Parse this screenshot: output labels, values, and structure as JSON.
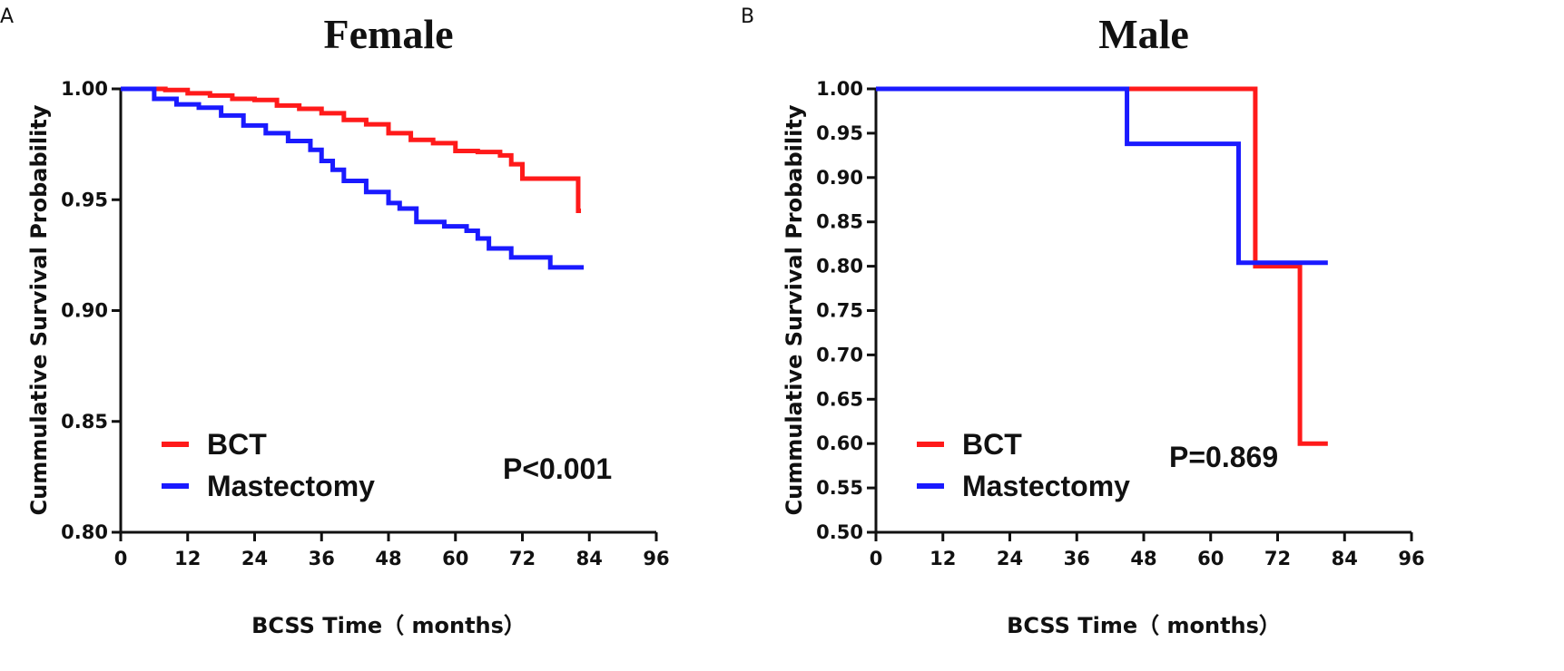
{
  "chart_data": [
    {
      "panel_label": "A",
      "type": "line",
      "subtype": "kaplan-meier step",
      "title": "Female",
      "xlabel": "BCSS Time（ months）",
      "ylabel": "Cummulative Survival Probability",
      "xlim": [
        0,
        96
      ],
      "ylim": [
        0.8,
        1.0
      ],
      "x_ticks": [
        "0",
        "12",
        "24",
        "36",
        "48",
        "60",
        "72",
        "84",
        "96"
      ],
      "y_ticks": [
        "0.80",
        "0.85",
        "0.90",
        "0.95",
        "1.00"
      ],
      "legend_position": "bottom-left",
      "annotation": "P<0.001",
      "series": [
        {
          "name": "BCT",
          "color": "#ff1a1a",
          "points": [
            [
              0,
              1.0
            ],
            [
              8,
              0.9995
            ],
            [
              12,
              0.998
            ],
            [
              16,
              0.997
            ],
            [
              20,
              0.9955
            ],
            [
              24,
              0.995
            ],
            [
              28,
              0.9925
            ],
            [
              32,
              0.991
            ],
            [
              36,
              0.989
            ],
            [
              40,
              0.986
            ],
            [
              44,
              0.984
            ],
            [
              48,
              0.98
            ],
            [
              52,
              0.977
            ],
            [
              56,
              0.9755
            ],
            [
              60,
              0.972
            ],
            [
              64,
              0.9715
            ],
            [
              68,
              0.97
            ],
            [
              70,
              0.966
            ],
            [
              72,
              0.9595
            ],
            [
              82,
              0.9595
            ],
            [
              82,
              0.945
            ],
            [
              82.5,
              0.945
            ]
          ]
        },
        {
          "name": "Mastectomy",
          "color": "#1a1aff",
          "points": [
            [
              0,
              1.0
            ],
            [
              6,
              0.9955
            ],
            [
              10,
              0.993
            ],
            [
              14,
              0.9915
            ],
            [
              18,
              0.988
            ],
            [
              22,
              0.9835
            ],
            [
              26,
              0.98
            ],
            [
              30,
              0.9765
            ],
            [
              34,
              0.9725
            ],
            [
              36,
              0.9675
            ],
            [
              38,
              0.9635
            ],
            [
              40,
              0.9585
            ],
            [
              44,
              0.9535
            ],
            [
              48,
              0.9485
            ],
            [
              50,
              0.946
            ],
            [
              53,
              0.94
            ],
            [
              58,
              0.938
            ],
            [
              62,
              0.936
            ],
            [
              64,
              0.9325
            ],
            [
              66,
              0.928
            ],
            [
              70,
              0.924
            ],
            [
              77,
              0.9195
            ],
            [
              83,
              0.9195
            ]
          ]
        }
      ]
    },
    {
      "panel_label": "B",
      "type": "line",
      "subtype": "kaplan-meier step",
      "title": "Male",
      "xlabel": "BCSS Time（ months）",
      "ylabel": "Cummulative Survival Probability",
      "xlim": [
        0,
        96
      ],
      "ylim": [
        0.5,
        1.0
      ],
      "x_ticks": [
        "0",
        "12",
        "24",
        "36",
        "48",
        "60",
        "72",
        "84",
        "96"
      ],
      "y_ticks": [
        "0.50",
        "0.55",
        "0.60",
        "0.65",
        "0.70",
        "0.75",
        "0.80",
        "0.85",
        "0.90",
        "0.95",
        "1.00"
      ],
      "legend_position": "bottom-left",
      "annotation": "P=0.869",
      "series": [
        {
          "name": "BCT",
          "color": "#ff1a1a",
          "points": [
            [
              0,
              1.0
            ],
            [
              68,
              1.0
            ],
            [
              68,
              0.8
            ],
            [
              76,
              0.8
            ],
            [
              76,
              0.6
            ],
            [
              81,
              0.6
            ]
          ]
        },
        {
          "name": "Mastectomy",
          "color": "#1a1aff",
          "points": [
            [
              0,
              1.0
            ],
            [
              45,
              1.0
            ],
            [
              45,
              0.938
            ],
            [
              65,
              0.938
            ],
            [
              65,
              0.804
            ],
            [
              81,
              0.804
            ]
          ]
        }
      ]
    }
  ]
}
